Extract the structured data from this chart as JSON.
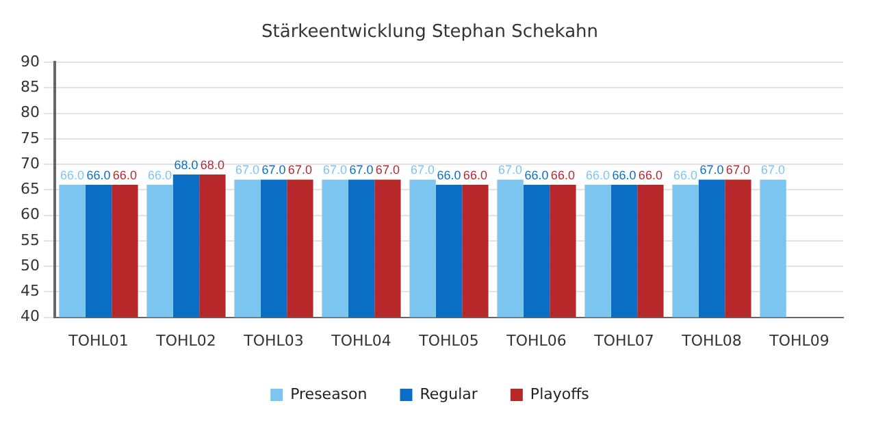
{
  "chart_data": {
    "type": "bar",
    "title": "Stärkeentwicklung Stephan Schekahn",
    "categories": [
      "TOHL01",
      "TOHL02",
      "TOHL03",
      "TOHL04",
      "TOHL05",
      "TOHL06",
      "TOHL07",
      "TOHL08",
      "TOHL09"
    ],
    "series": [
      {
        "name": "Preseason",
        "color": "#7cc5f0",
        "values": [
          66,
          66,
          67,
          67,
          67,
          67,
          66,
          66,
          67
        ],
        "value_labels": [
          "66.0",
          "66.0",
          "67.0",
          "67.0",
          "67.0",
          "67.0",
          "66.0",
          "66.0",
          "67.0"
        ]
      },
      {
        "name": "Regular",
        "color": "#0a6fc4",
        "values": [
          66,
          68,
          67,
          67,
          66,
          66,
          66,
          67,
          null
        ],
        "value_labels": [
          "66.0",
          "68.0",
          "67.0",
          "67.0",
          "66.0",
          "66.0",
          "66.0",
          "67.0",
          null
        ]
      },
      {
        "name": "Playoffs",
        "color": "#b7282b",
        "values": [
          66,
          68,
          67,
          67,
          66,
          66,
          66,
          67,
          null
        ],
        "value_labels": [
          "66.0",
          "68.0",
          "67.0",
          "67.0",
          "66.0",
          "66.0",
          "66.0",
          "67.0",
          null
        ]
      }
    ],
    "ylim": [
      40,
      90
    ],
    "yticks": [
      40,
      45,
      50,
      55,
      60,
      65,
      70,
      75,
      80,
      85,
      90
    ],
    "grid": "y",
    "legend": "bottom"
  }
}
